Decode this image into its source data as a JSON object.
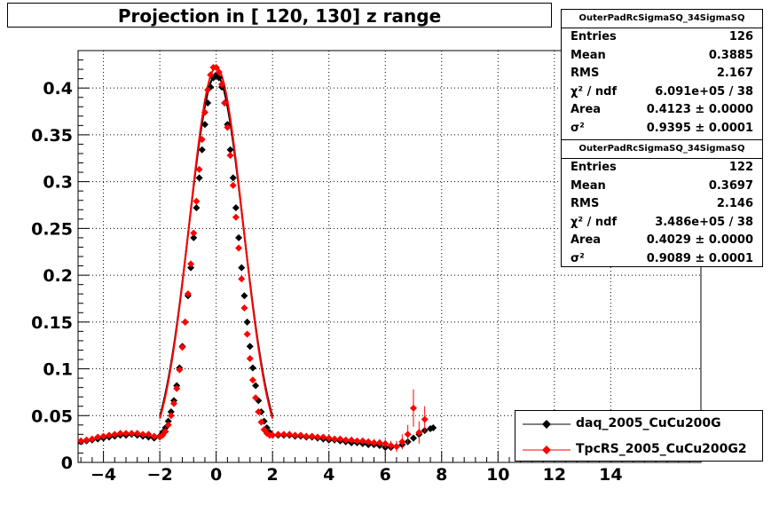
{
  "title": "Projection in [ 120, 130] z range",
  "stats": [
    {
      "name": "OuterPadRcSigmaSQ_34SigmaSQ",
      "rows": [
        {
          "label": "Entries",
          "value": "126"
        },
        {
          "label": "Mean",
          "value": "0.3885"
        },
        {
          "label": "RMS",
          "value": "2.167"
        },
        {
          "label": "χ² / ndf",
          "value": "6.091e+05 / 38"
        },
        {
          "label": "Area",
          "value": "0.4123 ± 0.0000"
        },
        {
          "label": "σ²",
          "value": "0.9395 ± 0.0001"
        }
      ]
    },
    {
      "name": "OuterPadRcSigmaSQ_34SigmaSQ",
      "rows": [
        {
          "label": "Entries",
          "value": "122"
        },
        {
          "label": "Mean",
          "value": "0.3697"
        },
        {
          "label": "RMS",
          "value": "2.146"
        },
        {
          "label": "χ² / ndf",
          "value": "3.486e+05 / 38"
        },
        {
          "label": "Area",
          "value": "0.4029 ± 0.0000"
        },
        {
          "label": "σ²",
          "value": "0.9089 ± 0.0001"
        }
      ]
    }
  ],
  "legend": [
    {
      "label": "daq_2005_CuCu200G",
      "color": "#000000"
    },
    {
      "label": "TpcRS_2005_CuCu200G2",
      "color": "#ff0000"
    }
  ],
  "chart_data": {
    "type": "scatter",
    "title": "Projection in [ 120, 130] z range",
    "xlabel": "",
    "ylabel": "",
    "xlim": [
      -4.9,
      17.2
    ],
    "ylim": [
      0,
      0.44
    ],
    "grid": true,
    "x_ticks": [
      "−4",
      "−2",
      "0",
      "2",
      "4",
      "6",
      "8",
      "10",
      "12",
      "14"
    ],
    "x_tick_values": [
      -4,
      -2,
      0,
      2,
      4,
      6,
      8,
      10,
      12,
      14
    ],
    "y_ticks": [
      "0",
      "0.05",
      "0.1",
      "0.15",
      "0.2",
      "0.25",
      "0.3",
      "0.35",
      "0.4"
    ],
    "y_tick_values": [
      0,
      0.05,
      0.1,
      0.15,
      0.2,
      0.25,
      0.3,
      0.35,
      0.4
    ],
    "series": [
      {
        "name": "daq_2005_CuCu200G",
        "color": "#000000",
        "x": [
          -4.8,
          -4.6,
          -4.4,
          -4.2,
          -4.0,
          -3.8,
          -3.6,
          -3.4,
          -3.2,
          -3.0,
          -2.8,
          -2.6,
          -2.4,
          -2.2,
          -2.0,
          -1.9,
          -1.8,
          -1.7,
          -1.6,
          -1.5,
          -1.4,
          -1.3,
          -1.2,
          -1.1,
          -1.0,
          -0.9,
          -0.8,
          -0.7,
          -0.6,
          -0.5,
          -0.4,
          -0.3,
          -0.2,
          -0.1,
          0.0,
          0.1,
          0.2,
          0.3,
          0.4,
          0.5,
          0.6,
          0.7,
          0.8,
          0.9,
          1.0,
          1.1,
          1.2,
          1.3,
          1.4,
          1.5,
          1.6,
          1.7,
          1.8,
          1.9,
          2.0,
          2.2,
          2.4,
          2.6,
          2.8,
          3.0,
          3.2,
          3.4,
          3.6,
          3.8,
          4.0,
          4.2,
          4.4,
          4.6,
          4.8,
          5.0,
          5.2,
          5.4,
          5.6,
          5.8,
          6.0,
          6.2,
          6.4,
          6.6,
          6.8,
          7.0,
          7.2,
          7.4,
          7.6,
          7.7
        ],
        "y": [
          0.022,
          0.023,
          0.024,
          0.025,
          0.026,
          0.027,
          0.028,
          0.029,
          0.029,
          0.03,
          0.029,
          0.028,
          0.027,
          0.026,
          0.028,
          0.032,
          0.037,
          0.044,
          0.054,
          0.066,
          0.082,
          0.101,
          0.124,
          0.15,
          0.178,
          0.208,
          0.24,
          0.272,
          0.304,
          0.334,
          0.361,
          0.384,
          0.401,
          0.411,
          0.414,
          0.411,
          0.401,
          0.384,
          0.361,
          0.334,
          0.304,
          0.272,
          0.24,
          0.208,
          0.178,
          0.15,
          0.124,
          0.101,
          0.082,
          0.066,
          0.054,
          0.044,
          0.037,
          0.032,
          0.029,
          0.029,
          0.029,
          0.029,
          0.028,
          0.028,
          0.027,
          0.027,
          0.026,
          0.025,
          0.024,
          0.024,
          0.023,
          0.022,
          0.021,
          0.021,
          0.02,
          0.019,
          0.019,
          0.018,
          0.016,
          0.016,
          0.017,
          0.019,
          0.022,
          0.026,
          0.03,
          0.034,
          0.036,
          0.037
        ]
      },
      {
        "name": "TpcRS_2005_CuCu200G2",
        "color": "#ff0000",
        "x": [
          -4.8,
          -4.6,
          -4.4,
          -4.2,
          -4.0,
          -3.8,
          -3.6,
          -3.4,
          -3.2,
          -3.0,
          -2.8,
          -2.6,
          -2.4,
          -2.2,
          -2.0,
          -1.9,
          -1.8,
          -1.7,
          -1.6,
          -1.5,
          -1.4,
          -1.3,
          -1.2,
          -1.1,
          -1.0,
          -0.9,
          -0.8,
          -0.7,
          -0.6,
          -0.5,
          -0.4,
          -0.3,
          -0.2,
          -0.1,
          0.0,
          0.1,
          0.2,
          0.3,
          0.4,
          0.5,
          0.6,
          0.7,
          0.8,
          0.9,
          1.0,
          1.1,
          1.2,
          1.3,
          1.4,
          1.5,
          1.6,
          1.7,
          1.8,
          1.9,
          2.0,
          2.2,
          2.4,
          2.6,
          2.8,
          3.0,
          3.2,
          3.4,
          3.6,
          3.8,
          4.0,
          4.2,
          4.4,
          4.6,
          4.8,
          5.0,
          5.2,
          5.4,
          5.6,
          5.8,
          6.0,
          6.2,
          6.4,
          6.6,
          6.8,
          7.0,
          7.2,
          7.4
        ],
        "y": [
          0.023,
          0.024,
          0.025,
          0.027,
          0.028,
          0.029,
          0.03,
          0.031,
          0.031,
          0.031,
          0.031,
          0.03,
          0.03,
          0.028,
          0.027,
          0.029,
          0.033,
          0.04,
          0.05,
          0.063,
          0.079,
          0.099,
          0.123,
          0.15,
          0.18,
          0.212,
          0.245,
          0.279,
          0.313,
          0.345,
          0.374,
          0.398,
          0.414,
          0.422,
          0.422,
          0.417,
          0.404,
          0.384,
          0.358,
          0.328,
          0.296,
          0.262,
          0.229,
          0.196,
          0.165,
          0.137,
          0.111,
          0.088,
          0.069,
          0.054,
          0.043,
          0.035,
          0.031,
          0.029,
          0.029,
          0.03,
          0.03,
          0.03,
          0.029,
          0.029,
          0.028,
          0.028,
          0.027,
          0.027,
          0.026,
          0.025,
          0.025,
          0.024,
          0.024,
          0.023,
          0.023,
          0.022,
          0.021,
          0.021,
          0.02,
          0.018,
          0.017,
          0.022,
          0.03,
          0.058,
          0.032,
          0.046
        ],
        "yerr": [
          0.002,
          0.002,
          0.002,
          0.002,
          0.002,
          0.002,
          0.002,
          0.002,
          0.002,
          0.002,
          0.002,
          0.002,
          0.002,
          0.002,
          0.002,
          0.002,
          0.002,
          0.002,
          0.002,
          0.002,
          0.002,
          0.002,
          0.002,
          0.002,
          0.002,
          0.002,
          0.002,
          0.002,
          0.002,
          0.002,
          0.002,
          0.002,
          0.002,
          0.002,
          0.002,
          0.002,
          0.002,
          0.002,
          0.002,
          0.002,
          0.002,
          0.002,
          0.002,
          0.002,
          0.002,
          0.002,
          0.002,
          0.002,
          0.002,
          0.002,
          0.002,
          0.002,
          0.002,
          0.002,
          0.002,
          0.002,
          0.002,
          0.002,
          0.002,
          0.002,
          0.002,
          0.002,
          0.002,
          0.002,
          0.002,
          0.002,
          0.002,
          0.002,
          0.003,
          0.003,
          0.003,
          0.003,
          0.004,
          0.004,
          0.005,
          0.005,
          0.006,
          0.008,
          0.01,
          0.02,
          0.012,
          0.014
        ]
      }
    ],
    "fit_curves": [
      {
        "series": "daq_2005_CuCu200G",
        "color": "#000000",
        "amplitude": 0.414,
        "sigma2": 0.9395,
        "range": [
          -2.0,
          2.0
        ]
      },
      {
        "series": "TpcRS_2005_CuCu200G2",
        "color": "#ff0000",
        "amplitude": 0.422,
        "sigma2": 0.9089,
        "range": [
          -2.0,
          2.0
        ]
      }
    ],
    "legend_position": "bottom-right"
  }
}
